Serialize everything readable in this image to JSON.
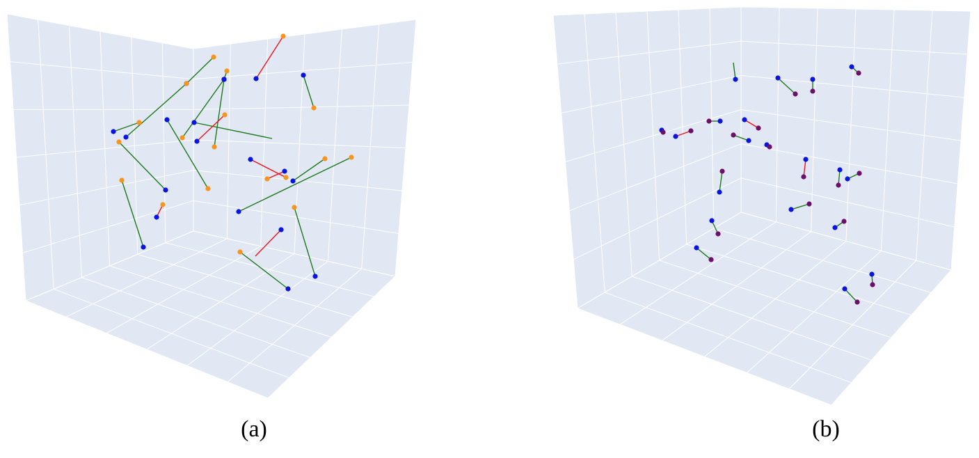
{
  "figures": [
    {
      "caption": "(a)",
      "chart_data": {
        "type": "scatter",
        "projection": "3d",
        "grid": true,
        "colors": {
          "background": "#e1e7f3",
          "grid": "#ffffff",
          "start": "#0a14e0",
          "end": "#f7941d",
          "pair_ok": "#1a7a1a",
          "pair_bad": "#e8141a"
        },
        "segments": [
          {
            "from": [
              268,
              120
            ],
            "to": [
              307,
              82
            ],
            "status": "ok"
          },
          {
            "from": [
              163,
              189
            ],
            "to": [
              200,
              176
            ],
            "status": "ok"
          },
          {
            "from": [
              181,
              197
            ],
            "to": [
              268,
              120
            ],
            "status": "ok"
          },
          {
            "from": [
              322,
              114
            ],
            "to": [
              326,
              102
            ],
            "status": "ok"
          },
          {
            "from": [
              322,
              114
            ],
            "to": [
              262,
              198
            ],
            "status": "ok"
          },
          {
            "from": [
              322,
              114
            ],
            "to": [
              308,
              211
            ],
            "status": "ok"
          },
          {
            "from": [
              368,
              113
            ],
            "to": [
              407,
              52
            ],
            "status": "bad"
          },
          {
            "from": [
              436,
              108
            ],
            "to": [
              451,
              155
            ],
            "status": "ok"
          },
          {
            "from": [
              240,
              172
            ],
            "to": [
              299,
              271
            ],
            "status": "ok"
          },
          {
            "from": [
              279,
              176
            ],
            "to": [
              391,
              199
            ],
            "status": "ok",
            "endpoint": false
          },
          {
            "from": [
              283,
              203
            ],
            "to": [
              323,
              165
            ],
            "status": "bad"
          },
          {
            "from": [
              238,
              273
            ],
            "to": [
              171,
              204
            ],
            "status": "ok"
          },
          {
            "from": [
              360,
              229
            ],
            "to": [
              411,
              255
            ],
            "status": "bad"
          },
          {
            "from": [
              409,
              246
            ],
            "to": [
              384,
              257
            ],
            "status": "bad"
          },
          {
            "from": [
              421,
              260
            ],
            "to": [
              467,
              228
            ],
            "status": "ok"
          },
          {
            "from": [
              343,
              304
            ],
            "to": [
              505,
              226
            ],
            "status": "ok"
          },
          {
            "from": [
              225,
              312
            ],
            "to": [
              234,
              294
            ],
            "status": "bad"
          },
          {
            "from": [
              206,
              355
            ],
            "to": [
              175,
              259
            ],
            "status": "ok"
          },
          {
            "from": [
              404,
              330
            ],
            "to": [
              367,
              368
            ],
            "status": "bad",
            "endpoint": false
          },
          {
            "from": [
              453,
              397
            ],
            "to": [
              423,
              298
            ],
            "status": "ok"
          },
          {
            "from": [
              414,
              415
            ],
            "to": [
              345,
              362
            ],
            "status": "ok"
          }
        ]
      }
    },
    {
      "caption": "(b)",
      "chart_data": {
        "type": "scatter",
        "projection": "3d",
        "grid": true,
        "colors": {
          "background": "#e1e7f3",
          "grid": "#ffffff",
          "start": "#0a14e0",
          "end": "#6b0f6b",
          "pair_ok": "#1a7a1a",
          "pair_bad": "#e8141a"
        },
        "segments": [
          {
            "from": [
              350,
              114
            ],
            "to": [
              347,
              90
            ],
            "status": "ok",
            "endpoint": false
          },
          {
            "from": [
              411,
              112
            ],
            "to": [
              436,
              135
            ],
            "status": "ok"
          },
          {
            "from": [
              461,
              114
            ],
            "to": [
              461,
              131
            ],
            "status": "ok"
          },
          {
            "from": [
              517,
              96
            ],
            "to": [
              527,
              105
            ],
            "status": "ok"
          },
          {
            "from": [
              244,
              187
            ],
            "to": [
              246,
              190
            ],
            "status": "ok"
          },
          {
            "from": [
              264,
              196
            ],
            "to": [
              286,
              188
            ],
            "status": "bad"
          },
          {
            "from": [
              328,
              174
            ],
            "to": [
              312,
              174
            ],
            "status": "ok"
          },
          {
            "from": [
              363,
              172
            ],
            "to": [
              383,
              184
            ],
            "status": "bad"
          },
          {
            "from": [
              369,
              202
            ],
            "to": [
              347,
              194
            ],
            "status": "ok"
          },
          {
            "from": [
              395,
              208
            ],
            "to": [
              399,
              211
            ],
            "status": "ok"
          },
          {
            "from": [
              451,
              229
            ],
            "to": [
              448,
              254
            ],
            "status": "bad"
          },
          {
            "from": [
              500,
              244
            ],
            "to": [
              498,
              266
            ],
            "status": "ok"
          },
          {
            "from": [
              511,
              257
            ],
            "to": [
              528,
              249
            ],
            "status": "ok"
          },
          {
            "from": [
              327,
              276
            ],
            "to": [
              331,
              246
            ],
            "status": "ok"
          },
          {
            "from": [
              430,
              301
            ],
            "to": [
              456,
              293
            ],
            "status": "ok"
          },
          {
            "from": [
              316,
              317
            ],
            "to": [
              325,
              336
            ],
            "status": "ok"
          },
          {
            "from": [
              493,
              327
            ],
            "to": [
              506,
              318
            ],
            "status": "ok"
          },
          {
            "from": [
              294,
              356
            ],
            "to": [
              315,
              373
            ],
            "status": "ok"
          },
          {
            "from": [
              546,
              394
            ],
            "to": [
              547,
              409
            ],
            "status": "ok"
          },
          {
            "from": [
              507,
              415
            ],
            "to": [
              525,
              434
            ],
            "status": "ok"
          }
        ]
      }
    }
  ]
}
